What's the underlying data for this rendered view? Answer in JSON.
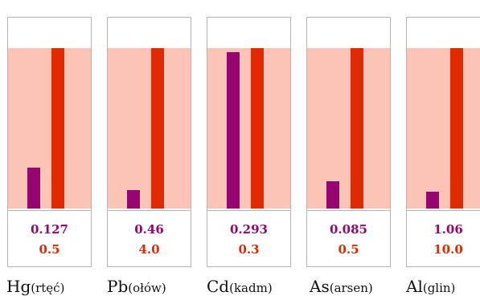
{
  "chart_data": {
    "type": "bar",
    "colors": {
      "measured": "#960671",
      "limit": "#e02a00",
      "limit_band": "#fcc4b6"
    },
    "categories": [
      {
        "symbol": "Hg",
        "name": "(rtęć)",
        "measured": 0.127,
        "limit": 0.5,
        "measured_label": "0.127",
        "limit_label": "0.5"
      },
      {
        "symbol": "Pb",
        "name": "(ołów)",
        "measured": 0.46,
        "limit": 4.0,
        "measured_label": "0.46",
        "limit_label": "4.0"
      },
      {
        "symbol": "Cd",
        "name": "(kadm)",
        "measured": 0.293,
        "limit": 0.3,
        "measured_label": "0.293",
        "limit_label": "0.3"
      },
      {
        "symbol": "As",
        "name": "(arsen)",
        "measured": 0.085,
        "limit": 0.5,
        "measured_label": "0.085",
        "limit_label": "0.5"
      },
      {
        "symbol": "Al",
        "name": "(glin)",
        "measured": 1.06,
        "limit": 10.0,
        "measured_label": "1.06",
        "limit_label": "10.0"
      }
    ]
  }
}
